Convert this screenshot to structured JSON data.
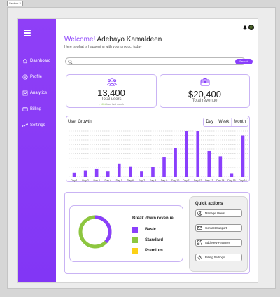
{
  "frame_label": "Section 2",
  "sidebar": {
    "items": [
      {
        "label": "Dashboard",
        "icon": "home-icon"
      },
      {
        "label": "Profile",
        "icon": "profile-icon"
      },
      {
        "label": "Analytics",
        "icon": "analytics-icon"
      },
      {
        "label": "Billing",
        "icon": "billing-icon"
      },
      {
        "label": "Settings",
        "icon": "settings-icon"
      }
    ]
  },
  "header": {
    "welcome_prefix": "Welcome!",
    "user_name": "Adebayo Kamaldeen",
    "subtitle": "Here is what is happening with your product today"
  },
  "search": {
    "placeholder": "",
    "button_label": "Search"
  },
  "stats": {
    "users": {
      "value": "13,400",
      "label": "Total users",
      "change": "↑ 10%",
      "change_suffix": " from last month"
    },
    "revenue": {
      "value": "$20,400",
      "label": "Total revenue"
    }
  },
  "growth": {
    "title": "User Growth",
    "periods": [
      "Day",
      "Week",
      "Month"
    ]
  },
  "chart_data": {
    "type": "bar",
    "title": "User Growth",
    "categories": [
      "Day 1",
      "Day 2",
      "Day 3",
      "Day 4",
      "Day 5",
      "Day 6",
      "Day 7",
      "Day 8",
      "Day 9",
      "Day 10",
      "Day 11",
      "Day 12",
      "Day 13",
      "Day 14",
      "Day 15",
      "Day 16"
    ],
    "values": [
      8,
      13,
      17,
      12,
      28,
      22,
      12,
      20,
      43,
      63,
      100,
      100,
      57,
      44,
      7,
      90
    ],
    "ylim": [
      0,
      100
    ],
    "grid": true,
    "color": "#8a3ffc"
  },
  "breakdown": {
    "title": "Break down revenue",
    "items": [
      {
        "label": "Basic",
        "color": "#8a3ffc"
      },
      {
        "label": "Standard",
        "color": "#8dc63f"
      },
      {
        "label": "Premium",
        "color": "#fcd116"
      }
    ]
  },
  "quick_actions": {
    "title": "Quick actions",
    "items": [
      {
        "label": "Manage Users",
        "icon": "users-icon"
      },
      {
        "label": "Contact Support",
        "icon": "mail-icon"
      },
      {
        "label": "Add New Features",
        "icon": "grid-plus-icon"
      },
      {
        "label": "Billing Settings",
        "icon": "gear-icon"
      }
    ]
  }
}
